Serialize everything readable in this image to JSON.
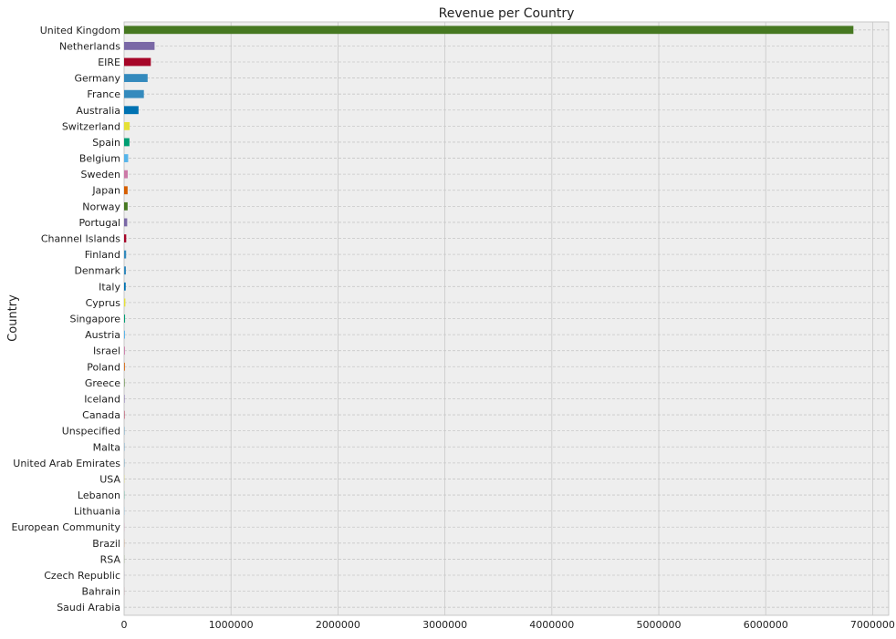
{
  "chart_data": {
    "type": "bar",
    "orientation": "horizontal",
    "title": "Revenue per Country",
    "xlabel": "",
    "ylabel": "Country",
    "xlim": [
      0,
      7150000
    ],
    "xticks": [
      0,
      1000000,
      2000000,
      3000000,
      4000000,
      5000000,
      6000000,
      7000000
    ],
    "grid": true,
    "legend": "none",
    "categories": [
      "United Kingdom",
      "Netherlands",
      "EIRE",
      "Germany",
      "France",
      "Australia",
      "Switzerland",
      "Spain",
      "Belgium",
      "Sweden",
      "Japan",
      "Norway",
      "Portugal",
      "Channel Islands",
      "Finland",
      "Denmark",
      "Italy",
      "Cyprus",
      "Singapore",
      "Austria",
      "Israel",
      "Poland",
      "Greece",
      "Iceland",
      "Canada",
      "Unspecified",
      "Malta",
      "United Arab Emirates",
      "USA",
      "Lebanon",
      "Lithuania",
      "European Community",
      "Brazil",
      "RSA",
      "Czech Republic",
      "Bahrain",
      "Saudi Arabia"
    ],
    "values": [
      6820000,
      285000,
      250000,
      220000,
      185000,
      135000,
      52000,
      50000,
      38000,
      34000,
      33000,
      33000,
      29000,
      20000,
      19000,
      17000,
      15000,
      12000,
      9000,
      8200,
      7500,
      7000,
      4400,
      4300,
      3500,
      2700,
      2500,
      1900,
      1700,
      1700,
      1600,
      1300,
      1100,
      1000,
      700,
      550,
      130
    ],
    "colors": [
      "#467821",
      "#7a68a6",
      "#a60628",
      "#348abd",
      "#348abd",
      "#0072b2",
      "#e5e036",
      "#009e73",
      "#56b4e9",
      "#cc79a7",
      "#d55e00",
      "#467821",
      "#7a68a6",
      "#a60628",
      "#348abd",
      "#348abd",
      "#0072b2",
      "#e5e036",
      "#009e73",
      "#56b4e9",
      "#cc79a7",
      "#d55e00",
      "#467821",
      "#7a68a6",
      "#a60628",
      "#348abd",
      "#348abd",
      "#0072b2",
      "#e5e036",
      "#009e73",
      "#56b4e9",
      "#cc79a7",
      "#d55e00",
      "#467821",
      "#7a68a6",
      "#a60628",
      "#348abd"
    ],
    "background": "#eeeeee",
    "grid_color": "#c8c8c8"
  }
}
